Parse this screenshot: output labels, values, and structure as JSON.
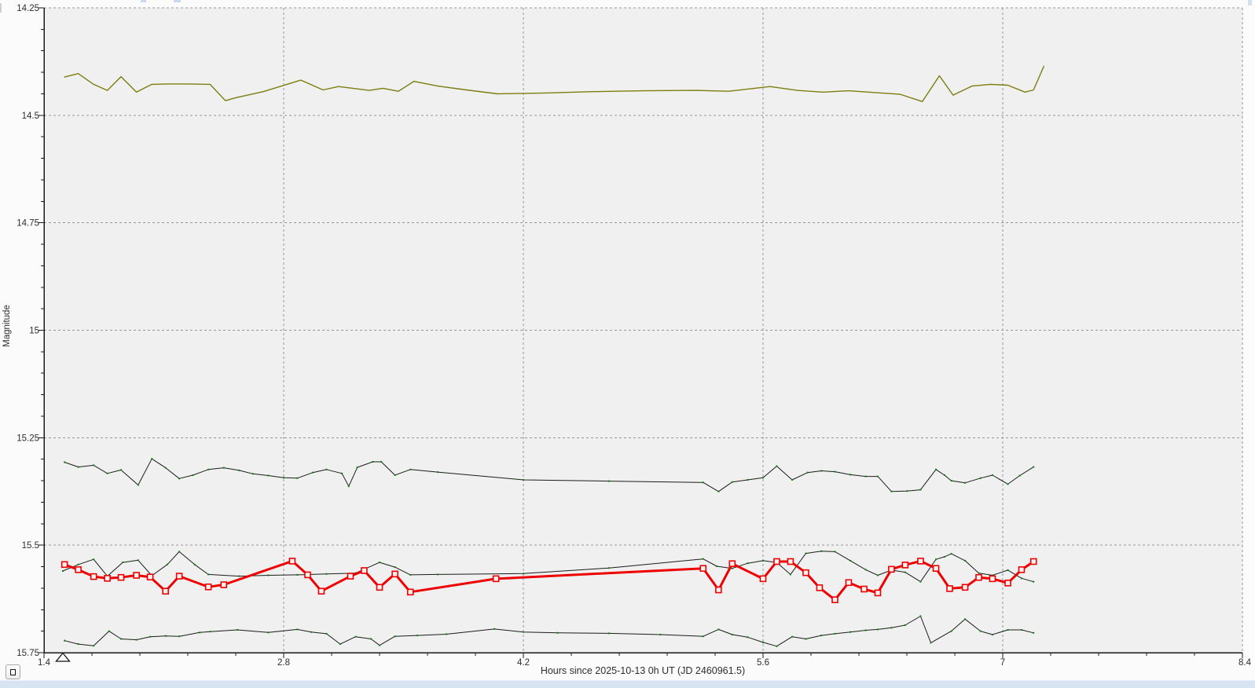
{
  "window": {
    "plot_background": "#f0f0f0",
    "margin_background": "#fbfbfb",
    "statusbar_color": "#d9e4f2"
  },
  "controls": {
    "reset_zoom_button": {
      "glyph": "small-square"
    }
  },
  "chart_data": {
    "type": "line",
    "title": "",
    "xlabel": "Hours since 2025-10-13 0h UT (JD 2460961.5)",
    "ylabel": "Magnitude",
    "xlim": [
      1.4,
      8.4
    ],
    "ylim": [
      14.25,
      15.75
    ],
    "y_axis_inverted": true,
    "grid": "dashed",
    "legend": "none",
    "grid_color": "#969696",
    "axis_color": "#1a1a1a",
    "x_major_step": 1.4,
    "x_minor_step": 0.28,
    "y_major_step": 0.25,
    "y_minor_step": 0.05,
    "x_tick_labels": [
      "1.4",
      "2.8",
      "4.2",
      "5.6",
      "7",
      "8.4"
    ],
    "y_tick_labels": [
      "14.25",
      "14.5",
      "14.75",
      "15",
      "15.25",
      "15.5",
      "15.75"
    ],
    "annotations": [
      {
        "type": "open-triangle-marker",
        "x_hours": 1.51,
        "position": "below-x-axis"
      }
    ],
    "series": [
      {
        "name": "comparison-line-olive",
        "color": "#7d7d0f",
        "line_width": 1.4,
        "marker": "none",
        "points": [
          [
            1.52,
            14.411
          ],
          [
            1.6,
            14.403
          ],
          [
            1.69,
            14.428
          ],
          [
            1.77,
            14.442
          ],
          [
            1.85,
            14.41
          ],
          [
            1.94,
            14.446
          ],
          [
            2.03,
            14.428
          ],
          [
            2.12,
            14.427
          ],
          [
            2.25,
            14.427
          ],
          [
            2.37,
            14.428
          ],
          [
            2.46,
            14.466
          ],
          [
            2.52,
            14.459
          ],
          [
            2.68,
            14.445
          ],
          [
            2.9,
            14.418
          ],
          [
            3.03,
            14.441
          ],
          [
            3.12,
            14.433
          ],
          [
            3.3,
            14.442
          ],
          [
            3.38,
            14.437
          ],
          [
            3.47,
            14.444
          ],
          [
            3.56,
            14.421
          ],
          [
            3.7,
            14.432
          ],
          [
            3.85,
            14.44
          ],
          [
            4.05,
            14.45
          ],
          [
            4.33,
            14.448
          ],
          [
            4.6,
            14.445
          ],
          [
            4.9,
            14.443
          ],
          [
            5.2,
            14.442
          ],
          [
            5.4,
            14.444
          ],
          [
            5.64,
            14.433
          ],
          [
            5.8,
            14.442
          ],
          [
            5.95,
            14.446
          ],
          [
            6.1,
            14.443
          ],
          [
            6.25,
            14.447
          ],
          [
            6.4,
            14.451
          ],
          [
            6.53,
            14.468
          ],
          [
            6.63,
            14.408
          ],
          [
            6.71,
            14.453
          ],
          [
            6.82,
            14.432
          ],
          [
            6.93,
            14.428
          ],
          [
            7.03,
            14.43
          ],
          [
            7.13,
            14.446
          ],
          [
            7.18,
            14.441
          ],
          [
            7.24,
            14.386
          ]
        ]
      },
      {
        "name": "comparison-line-upper-black",
        "color": "#1b1b1b",
        "line_width": 1,
        "marker": "green-dot",
        "marker_color": "#0c7d0c",
        "points": [
          [
            1.52,
            15.307
          ],
          [
            1.6,
            15.318
          ],
          [
            1.69,
            15.314
          ],
          [
            1.77,
            15.333
          ],
          [
            1.85,
            15.325
          ],
          [
            1.95,
            15.36
          ],
          [
            2.03,
            15.299
          ],
          [
            2.11,
            15.32
          ],
          [
            2.19,
            15.345
          ],
          [
            2.27,
            15.337
          ],
          [
            2.36,
            15.324
          ],
          [
            2.45,
            15.32
          ],
          [
            2.54,
            15.326
          ],
          [
            2.62,
            15.334
          ],
          [
            2.71,
            15.338
          ],
          [
            2.8,
            15.343
          ],
          [
            2.88,
            15.344
          ],
          [
            2.97,
            15.331
          ],
          [
            3.05,
            15.324
          ],
          [
            3.14,
            15.333
          ],
          [
            3.18,
            15.363
          ],
          [
            3.23,
            15.319
          ],
          [
            3.32,
            15.306
          ],
          [
            3.37,
            15.306
          ],
          [
            3.45,
            15.337
          ],
          [
            3.54,
            15.324
          ],
          [
            3.7,
            15.33
          ],
          [
            4.2,
            15.348
          ],
          [
            4.7,
            15.351
          ],
          [
            5.25,
            15.354
          ],
          [
            5.34,
            15.375
          ],
          [
            5.42,
            15.353
          ],
          [
            5.51,
            15.348
          ],
          [
            5.6,
            15.343
          ],
          [
            5.68,
            15.316
          ],
          [
            5.77,
            15.348
          ],
          [
            5.86,
            15.331
          ],
          [
            5.94,
            15.327
          ],
          [
            6.02,
            15.329
          ],
          [
            6.11,
            15.336
          ],
          [
            6.2,
            15.34
          ],
          [
            6.27,
            15.34
          ],
          [
            6.35,
            15.375
          ],
          [
            6.44,
            15.374
          ],
          [
            6.52,
            15.371
          ],
          [
            6.61,
            15.324
          ],
          [
            6.66,
            15.337
          ],
          [
            6.7,
            15.35
          ],
          [
            6.78,
            15.355
          ],
          [
            6.87,
            15.344
          ],
          [
            6.94,
            15.337
          ],
          [
            7.03,
            15.358
          ],
          [
            7.1,
            15.338
          ],
          [
            7.18,
            15.318
          ]
        ]
      },
      {
        "name": "comparison-line-middle-black",
        "color": "#1b1b1b",
        "line_width": 1,
        "marker": "green-dot",
        "marker_color": "#0c7d0c",
        "points": [
          [
            1.51,
            15.56
          ],
          [
            1.6,
            15.545
          ],
          [
            1.69,
            15.533
          ],
          [
            1.77,
            15.572
          ],
          [
            1.86,
            15.54
          ],
          [
            1.95,
            15.535
          ],
          [
            2.03,
            15.571
          ],
          [
            2.12,
            15.545
          ],
          [
            2.19,
            15.515
          ],
          [
            2.28,
            15.545
          ],
          [
            2.36,
            15.568
          ],
          [
            2.54,
            15.572
          ],
          [
            2.71,
            15.57
          ],
          [
            2.88,
            15.569
          ],
          [
            3.05,
            15.567
          ],
          [
            3.22,
            15.565
          ],
          [
            3.36,
            15.54
          ],
          [
            3.45,
            15.551
          ],
          [
            3.54,
            15.569
          ],
          [
            3.7,
            15.568
          ],
          [
            4.2,
            15.566
          ],
          [
            4.7,
            15.553
          ],
          [
            5.25,
            15.532
          ],
          [
            5.33,
            15.549
          ],
          [
            5.42,
            15.554
          ],
          [
            5.51,
            15.542
          ],
          [
            5.6,
            15.536
          ],
          [
            5.68,
            15.54
          ],
          [
            5.76,
            15.568
          ],
          [
            5.85,
            15.519
          ],
          [
            5.94,
            15.514
          ],
          [
            6.02,
            15.515
          ],
          [
            6.11,
            15.536
          ],
          [
            6.2,
            15.557
          ],
          [
            6.27,
            15.57
          ],
          [
            6.35,
            15.558
          ],
          [
            6.43,
            15.563
          ],
          [
            6.52,
            15.585
          ],
          [
            6.61,
            15.533
          ],
          [
            6.66,
            15.527
          ],
          [
            6.7,
            15.52
          ],
          [
            6.78,
            15.536
          ],
          [
            6.86,
            15.565
          ],
          [
            6.94,
            15.57
          ],
          [
            7.03,
            15.558
          ],
          [
            7.11,
            15.577
          ],
          [
            7.18,
            15.585
          ]
        ]
      },
      {
        "name": "comparison-line-lower-black",
        "color": "#1b1b1b",
        "line_width": 1,
        "marker": "green-dot",
        "marker_color": "#0c7d0c",
        "points": [
          [
            1.52,
            15.722
          ],
          [
            1.6,
            15.73
          ],
          [
            1.69,
            15.734
          ],
          [
            1.78,
            15.7
          ],
          [
            1.85,
            15.718
          ],
          [
            1.94,
            15.72
          ],
          [
            2.02,
            15.713
          ],
          [
            2.11,
            15.711
          ],
          [
            2.19,
            15.712
          ],
          [
            2.31,
            15.703
          ],
          [
            2.37,
            15.701
          ],
          [
            2.53,
            15.697
          ],
          [
            2.71,
            15.703
          ],
          [
            2.88,
            15.696
          ],
          [
            2.96,
            15.702
          ],
          [
            3.05,
            15.706
          ],
          [
            3.13,
            15.73
          ],
          [
            3.22,
            15.713
          ],
          [
            3.31,
            15.718
          ],
          [
            3.36,
            15.733
          ],
          [
            3.45,
            15.712
          ],
          [
            3.58,
            15.71
          ],
          [
            3.75,
            15.707
          ],
          [
            4.03,
            15.695
          ],
          [
            4.2,
            15.702
          ],
          [
            4.4,
            15.704
          ],
          [
            4.7,
            15.705
          ],
          [
            5.0,
            15.708
          ],
          [
            5.25,
            15.712
          ],
          [
            5.34,
            15.696
          ],
          [
            5.42,
            15.708
          ],
          [
            5.51,
            15.714
          ],
          [
            5.6,
            15.726
          ],
          [
            5.68,
            15.735
          ],
          [
            5.77,
            15.713
          ],
          [
            5.85,
            15.718
          ],
          [
            5.94,
            15.71
          ],
          [
            6.02,
            15.706
          ],
          [
            6.11,
            15.702
          ],
          [
            6.2,
            15.698
          ],
          [
            6.27,
            15.696
          ],
          [
            6.35,
            15.692
          ],
          [
            6.43,
            15.686
          ],
          [
            6.52,
            15.665
          ],
          [
            6.58,
            15.727
          ],
          [
            6.7,
            15.7
          ],
          [
            6.78,
            15.672
          ],
          [
            6.87,
            15.7
          ],
          [
            6.94,
            15.708
          ],
          [
            7.03,
            15.697
          ],
          [
            7.11,
            15.697
          ],
          [
            7.18,
            15.704
          ]
        ]
      },
      {
        "name": "target-line-red",
        "color": "#ee0000",
        "line_width": 3,
        "marker": "open-square",
        "marker_size": 7,
        "marker_fill": "#f2f2f2",
        "points": [
          [
            1.52,
            15.545
          ],
          [
            1.6,
            15.557
          ],
          [
            1.69,
            15.573
          ],
          [
            1.77,
            15.577
          ],
          [
            1.85,
            15.575
          ],
          [
            1.94,
            15.57
          ],
          [
            2.02,
            15.574
          ],
          [
            2.11,
            15.607
          ],
          [
            2.19,
            15.572
          ],
          [
            2.36,
            15.597
          ],
          [
            2.45,
            15.592
          ],
          [
            2.85,
            15.537
          ],
          [
            2.94,
            15.569
          ],
          [
            3.02,
            15.607
          ],
          [
            3.19,
            15.572
          ],
          [
            3.27,
            15.559
          ],
          [
            3.36,
            15.598
          ],
          [
            3.45,
            15.567
          ],
          [
            3.54,
            15.609
          ],
          [
            4.04,
            15.578
          ],
          [
            5.25,
            15.554
          ],
          [
            5.34,
            15.604
          ],
          [
            5.42,
            15.543
          ],
          [
            5.6,
            15.578
          ],
          [
            5.68,
            15.538
          ],
          [
            5.76,
            15.538
          ],
          [
            5.85,
            15.564
          ],
          [
            5.93,
            15.599
          ],
          [
            6.02,
            15.627
          ],
          [
            6.1,
            15.587
          ],
          [
            6.19,
            15.602
          ],
          [
            6.27,
            15.611
          ],
          [
            6.35,
            15.556
          ],
          [
            6.43,
            15.546
          ],
          [
            6.52,
            15.537
          ],
          [
            6.61,
            15.554
          ],
          [
            6.69,
            15.601
          ],
          [
            6.78,
            15.598
          ],
          [
            6.86,
            15.575
          ],
          [
            6.94,
            15.578
          ],
          [
            7.03,
            15.588
          ],
          [
            7.11,
            15.557
          ],
          [
            7.18,
            15.538
          ]
        ]
      }
    ]
  }
}
